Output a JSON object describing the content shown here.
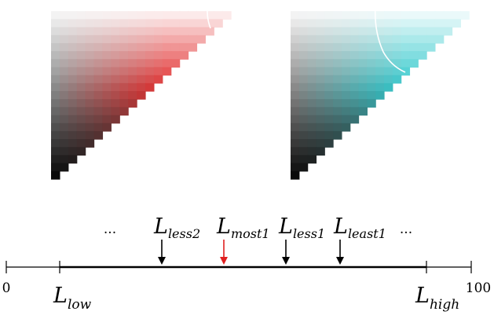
{
  "gradients": [
    {
      "name": "red",
      "hue_color": "#e02020",
      "dark_color": "#050505",
      "light_color": "#ffffff",
      "has_contour": true
    },
    {
      "name": "cyan",
      "hue_color": "#22c4c8",
      "dark_color": "#050505",
      "light_color": "#ffffff",
      "has_contour": true
    }
  ],
  "scale": {
    "min_label": "0",
    "max_label": "100",
    "low_label": {
      "main": "L",
      "sub": "low"
    },
    "high_label": {
      "main": "L",
      "sub": "high"
    },
    "ellipsis_left": "...",
    "ellipsis_right": "...",
    "markers": [
      {
        "main": "L",
        "sub": "less2",
        "color": "#000000"
      },
      {
        "main": "L",
        "sub": "most1",
        "color": "#e02020"
      },
      {
        "main": "L",
        "sub": "less1",
        "color": "#000000"
      },
      {
        "main": "L",
        "sub": "least1",
        "color": "#000000"
      }
    ]
  }
}
